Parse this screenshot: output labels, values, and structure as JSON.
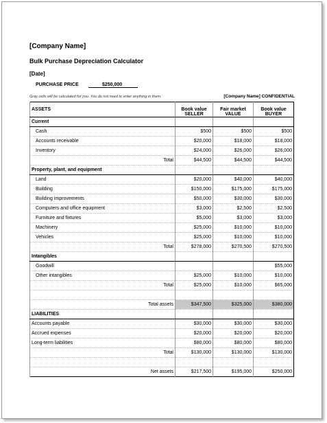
{
  "header": {
    "company": "[Company Name]",
    "title": "Bulk Purchase Depreciation Calculator",
    "date": "[Date]",
    "purchase_price_label": "PURCHASE PRICE",
    "purchase_price": "$250,000",
    "note": "Gray cells will be calculated for you. You do not need to enter anything in them.",
    "confidential": "[Company Name] CONFIDENTIAL"
  },
  "table": {
    "header": [
      [
        "ASSETS"
      ],
      [
        "Book value",
        "SELLER"
      ],
      [
        "Fair market",
        "VALUE"
      ],
      [
        "Book value",
        "BUYER"
      ]
    ],
    "assets": [
      {
        "title": "Current",
        "rows": [
          {
            "label": "Cash",
            "values": [
              "$500",
              "$500",
              "$500"
            ]
          },
          {
            "label": "Accounts receivable",
            "values": [
              "$20,000",
              "$18,000",
              "$18,000"
            ]
          },
          {
            "label": "Inventory",
            "values": [
              "$24,000",
              "$26,000",
              "$26,000"
            ]
          }
        ],
        "total": {
          "label": "Total",
          "values": [
            "$44,500",
            "$44,500",
            "$44,500"
          ]
        }
      },
      {
        "title": "Property, plant, and equipment",
        "rows": [
          {
            "label": "Land",
            "values": [
              "$20,000",
              "$40,000",
              "$40,000"
            ]
          },
          {
            "label": "Building",
            "values": [
              "$150,000",
              "$175,000",
              "$175,000"
            ]
          },
          {
            "label": "Building improvements",
            "values": [
              "$50,000",
              "$30,000",
              "$30,000"
            ]
          },
          {
            "label": "Computers and office equipment",
            "values": [
              "$3,000",
              "$2,500",
              "$2,500"
            ]
          },
          {
            "label": "Furniture and fixtures",
            "values": [
              "$5,000",
              "$3,000",
              "$3,000"
            ]
          },
          {
            "label": "Machinery",
            "values": [
              "$25,000",
              "$10,000",
              "$10,000"
            ]
          },
          {
            "label": "Vehicles",
            "values": [
              "$25,000",
              "$10,000",
              "$10,000"
            ]
          }
        ],
        "total": {
          "label": "Total",
          "values": [
            "$278,000",
            "$270,500",
            "$270,500"
          ]
        }
      },
      {
        "title": "Intangibles",
        "rows": [
          {
            "label": "Goodwill",
            "values": [
              null,
              null,
              "$55,000"
            ]
          },
          {
            "label": "Other intangibles",
            "values": [
              "$25,000",
              "$10,000",
              "$10,000"
            ]
          }
        ],
        "total": {
          "label": "Total",
          "values": [
            "$25,000",
            "$10,000",
            "$65,000"
          ]
        }
      }
    ],
    "total_assets": {
      "label": "Total assets",
      "values": [
        "$347,500",
        "$325,000",
        "$380,000"
      ]
    },
    "liabilities": {
      "title": "LIABILITIES",
      "rows": [
        {
          "label": "Accounts payable",
          "values": [
            "$30,000",
            "$30,000",
            "$30,000"
          ]
        },
        {
          "label": "Accrued expenses",
          "values": [
            "$20,000",
            "$20,000",
            "$20,000"
          ]
        },
        {
          "label": "Long-term liabilities",
          "values": [
            "$80,000",
            "$80,000",
            "$80,000"
          ]
        }
      ],
      "total": {
        "label": "Total",
        "values": [
          "$130,000",
          "$130,000",
          "$130,000"
        ]
      }
    },
    "net_assets": {
      "label": "Net assets",
      "values": [
        "$217,500",
        "$195,000",
        "$250,000"
      ]
    }
  }
}
